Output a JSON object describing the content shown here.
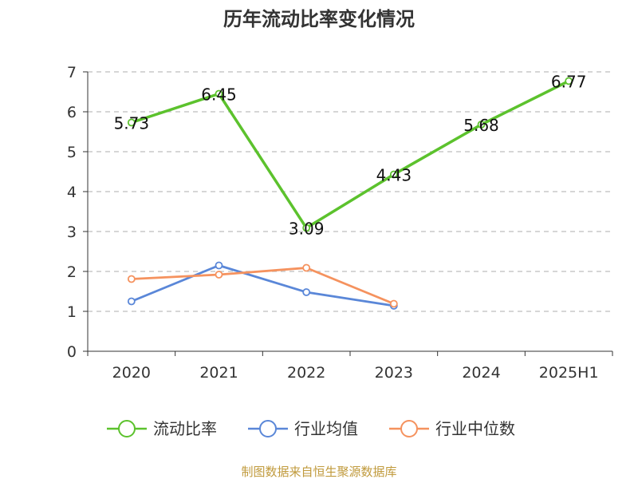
{
  "chart_data": {
    "type": "line",
    "title": "历年流动比率变化情况",
    "categories": [
      "2020",
      "2021",
      "2022",
      "2023",
      "2024",
      "2025H1"
    ],
    "ylim": [
      0,
      7
    ],
    "yticks": [
      "0",
      "1",
      "2",
      "3",
      "4",
      "5",
      "6",
      "7"
    ],
    "grid": true,
    "legend_position": "bottom",
    "series": [
      {
        "name": "流动比率",
        "color": "#5cc22d",
        "values": [
          5.73,
          6.45,
          3.09,
          4.43,
          5.68,
          6.77
        ],
        "labels": [
          "5.73",
          "6.45",
          "3.09",
          "4.43",
          "5.68",
          "6.77"
        ]
      },
      {
        "name": "行业均值",
        "color": "#5a87d8",
        "values": [
          1.25,
          2.15,
          1.48,
          1.14,
          null,
          null
        ]
      },
      {
        "name": "行业中位数",
        "color": "#f5925e",
        "values": [
          1.81,
          1.92,
          2.09,
          1.19,
          null,
          null
        ]
      }
    ],
    "source": "制图数据来自恒生聚源数据库",
    "source_color": "#c09a3c"
  }
}
